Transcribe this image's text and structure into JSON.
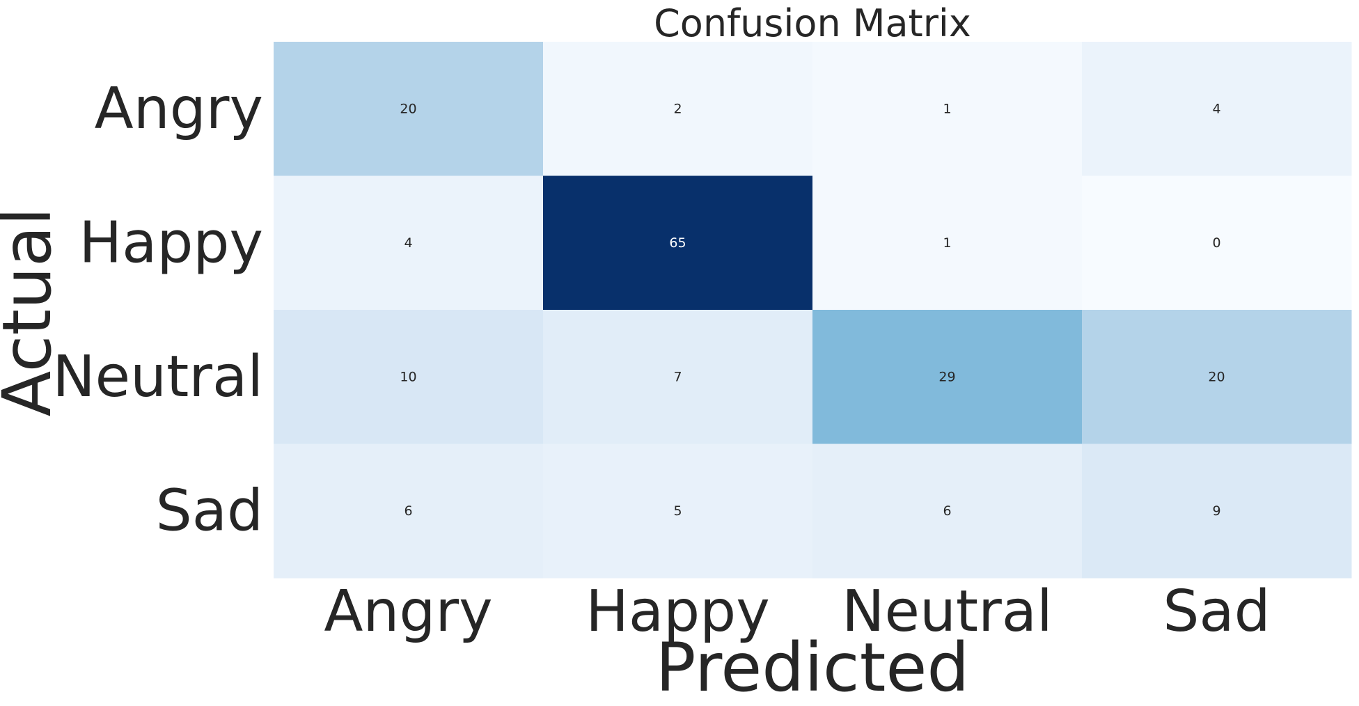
{
  "chart_data": {
    "type": "heatmap",
    "title": "Confusion Matrix",
    "xlabel": "Predicted",
    "ylabel": "Actual",
    "x_categories": [
      "Angry",
      "Happy",
      "Neutral",
      "Sad"
    ],
    "y_categories": [
      "Angry",
      "Happy",
      "Neutral",
      "Sad"
    ],
    "values": [
      [
        20,
        2,
        1,
        4
      ],
      [
        4,
        65,
        1,
        0
      ],
      [
        10,
        7,
        29,
        20
      ],
      [
        6,
        5,
        6,
        9
      ]
    ],
    "colormap": "Blues",
    "color_range": [
      0,
      65
    ],
    "colorbar": false,
    "grid": false
  }
}
